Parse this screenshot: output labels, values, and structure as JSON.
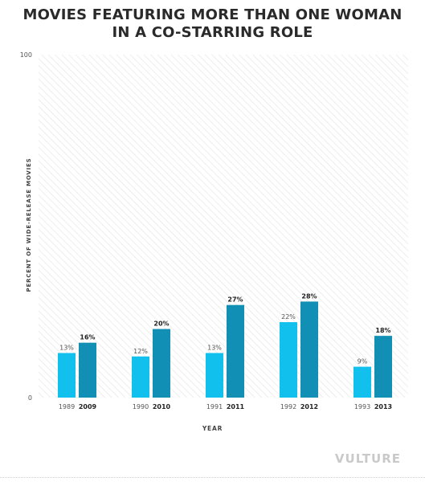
{
  "title_line1": "MOVIES FEATURING MORE THAN ONE WOMAN",
  "title_line2": "IN A CO-STARRING ROLE",
  "brand": "VULTURE",
  "colors": {
    "series_old": "#12c0ee",
    "series_new": "#128fb4",
    "background_hatch": "#e3e3e3"
  },
  "chart_data": {
    "type": "bar",
    "title": "MOVIES FEATURING MORE THAN ONE WOMAN IN A CO-STARRING ROLE",
    "xlabel": "YEAR",
    "ylabel": "PERCENT OF WIDE-RELEASE MOVIES",
    "ylim": [
      0,
      100
    ],
    "yticks": [
      "0",
      "100"
    ],
    "grid": false,
    "legend": "none",
    "groups": [
      {
        "bars": [
          {
            "year": "1989",
            "value": 13,
            "label": "13%"
          },
          {
            "year": "2009",
            "value": 16,
            "label": "16%"
          }
        ]
      },
      {
        "bars": [
          {
            "year": "1990",
            "value": 12,
            "label": "12%"
          },
          {
            "year": "2010",
            "value": 20,
            "label": "20%"
          }
        ]
      },
      {
        "bars": [
          {
            "year": "1991",
            "value": 13,
            "label": "13%"
          },
          {
            "year": "2011",
            "value": 27,
            "label": "27%"
          }
        ]
      },
      {
        "bars": [
          {
            "year": "1992",
            "value": 22,
            "label": "22%"
          },
          {
            "year": "2012",
            "value": 28,
            "label": "28%"
          }
        ]
      },
      {
        "bars": [
          {
            "year": "1993",
            "value": 9,
            "label": "9%"
          },
          {
            "year": "2013",
            "value": 18,
            "label": "18%"
          }
        ]
      }
    ]
  }
}
